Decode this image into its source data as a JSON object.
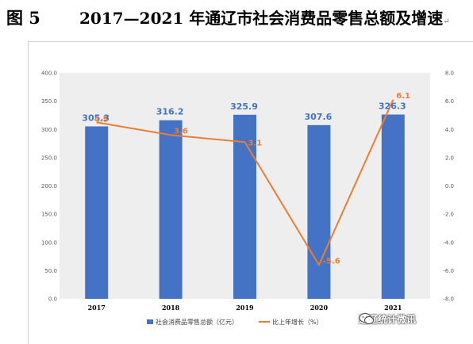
{
  "heading": {
    "figure": "图 5",
    "title": "2017—2021 年通辽市社会消费品零售总额及增速",
    "mark": "↵"
  },
  "watermark": "通辽统计微讯",
  "chart_data": {
    "type": "bar+line",
    "title": "",
    "categories": [
      "2017",
      "2018",
      "2019",
      "2020",
      "2021"
    ],
    "series": [
      {
        "name": "社会消费品零售总额（亿元）",
        "type": "bar",
        "axis": "left",
        "color": "#4472c4",
        "values": [
          305.3,
          316.2,
          325.9,
          307.6,
          326.3
        ],
        "labels": [
          "305.3",
          "316.2",
          "325.9",
          "307.6",
          "326.3"
        ]
      },
      {
        "name": "比上年增长（%）",
        "type": "line",
        "axis": "right",
        "color": "#ed7d31",
        "values": [
          4.5,
          3.6,
          3.1,
          -5.6,
          6.1
        ],
        "labels": [
          "4.5",
          "3.6",
          "3.1",
          "-5.6",
          "6.1"
        ]
      }
    ],
    "y_left": {
      "lim": [
        0,
        400
      ],
      "ticks": [
        "0.0",
        "50.0",
        "100.0",
        "150.0",
        "200.0",
        "250.0",
        "300.0",
        "350.0",
        "400.0"
      ]
    },
    "y_right": {
      "lim": [
        -8,
        8
      ],
      "ticks": [
        "-8.0",
        "-6.0",
        "-4.0",
        "-2.0",
        "0.0",
        "2.0",
        "4.0",
        "6.0",
        "8.0"
      ]
    },
    "grid": false,
    "legend_position": "bottom",
    "plot_background": "#eeeeee"
  }
}
